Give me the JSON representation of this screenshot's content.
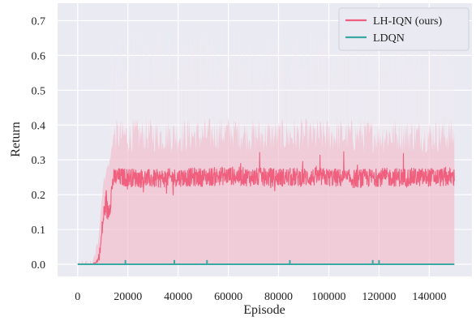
{
  "chart_data": {
    "type": "line",
    "title": "",
    "xlabel": "Episode",
    "ylabel": "Return",
    "xlim": [
      -8000,
      157000
    ],
    "ylim": [
      -0.035,
      0.75
    ],
    "xticks": [
      0,
      20000,
      40000,
      60000,
      80000,
      100000,
      120000,
      140000
    ],
    "xtick_labels": [
      "0",
      "20000",
      "40000",
      "60000",
      "80000",
      "100000",
      "120000",
      "140000"
    ],
    "yticks": [
      0.0,
      0.1,
      0.2,
      0.3,
      0.4,
      0.5,
      0.6,
      0.7
    ],
    "ytick_labels": [
      "0.0",
      "0.1",
      "0.2",
      "0.3",
      "0.4",
      "0.5",
      "0.6",
      "0.7"
    ],
    "grid": true,
    "legend_position": "top-right",
    "series": [
      {
        "name": "LH-IQN (ours)",
        "color": "#f0607e",
        "band_color": "#f3b2c3",
        "x": [
          0,
          6000,
          8000,
          9000,
          10000,
          11000,
          12000,
          13000,
          14000,
          15000,
          20000,
          30000,
          40000,
          50000,
          60000,
          70000,
          80000,
          90000,
          100000,
          110000,
          120000,
          130000,
          140000,
          150000
        ],
        "mean": [
          0,
          0,
          0.01,
          0.04,
          0.12,
          0.17,
          0.15,
          0.18,
          0.24,
          0.25,
          0.25,
          0.245,
          0.25,
          0.25,
          0.255,
          0.25,
          0.25,
          0.25,
          0.25,
          0.245,
          0.25,
          0.25,
          0.25,
          0.25
        ],
        "noise": [
          0,
          0,
          0.005,
          0.02,
          0.03,
          0.03,
          0.03,
          0.03,
          0.025,
          0.025,
          0.025,
          0.025,
          0.025,
          0.025,
          0.025,
          0.025,
          0.025,
          0.025,
          0.025,
          0.025,
          0.025,
          0.025,
          0.025,
          0.025
        ],
        "band_lower": [
          0,
          0,
          0,
          0,
          0,
          0,
          0,
          0,
          0,
          0,
          0,
          0,
          0,
          0,
          0,
          0,
          0,
          0,
          0,
          0,
          0,
          0,
          0,
          0
        ],
        "band_upper": [
          0,
          0,
          0.06,
          0.14,
          0.22,
          0.26,
          0.28,
          0.3,
          0.36,
          0.37,
          0.37,
          0.37,
          0.37,
          0.37,
          0.38,
          0.37,
          0.37,
          0.37,
          0.37,
          0.37,
          0.37,
          0.37,
          0.37,
          0.37
        ]
      },
      {
        "name": "LDQN",
        "color": "#3aa8a3",
        "x": [
          0,
          150000
        ],
        "mean": [
          0,
          0
        ],
        "spikes_x": [
          19000,
          38500,
          51500,
          84500,
          117500,
          120000
        ],
        "spike_height": 0.012
      }
    ]
  }
}
